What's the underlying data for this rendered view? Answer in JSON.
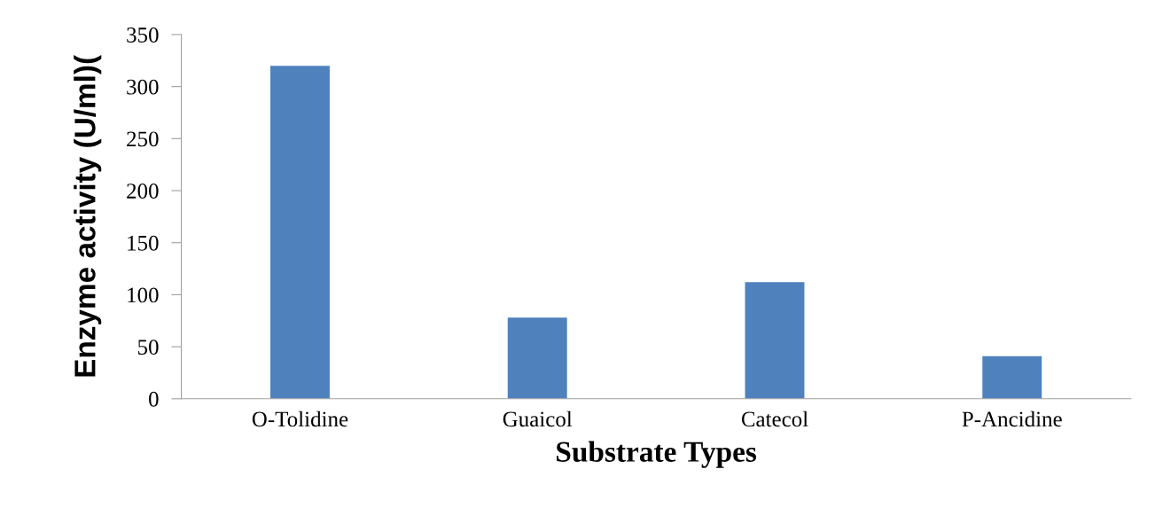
{
  "chart_data": {
    "type": "bar",
    "xlabel": "Substrate Types",
    "ylabel": "Enzyme activity (U/ml)(",
    "categories": [
      "O-Tolidine",
      "Guaicol",
      "Catecol",
      "P-Ancidine"
    ],
    "values": [
      320,
      78,
      112,
      41
    ],
    "color": "#4f81bd",
    "ylim": [
      0,
      350
    ],
    "yticks": [
      0,
      50,
      100,
      150,
      200,
      250,
      300,
      350
    ],
    "grid": false
  }
}
